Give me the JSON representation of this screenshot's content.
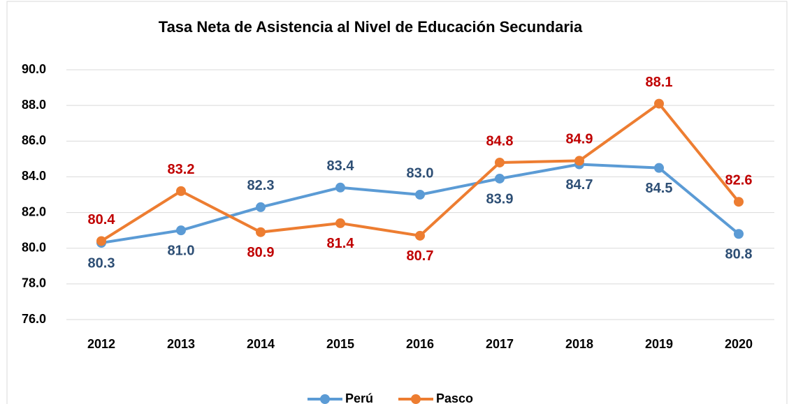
{
  "chart_data": {
    "type": "line",
    "title": "Tasa Neta de Asistencia al Nivel de Educación Secundaria",
    "categories": [
      "2012",
      "2013",
      "2014",
      "2015",
      "2016",
      "2017",
      "2018",
      "2019",
      "2020"
    ],
    "series": [
      {
        "name": "Perú",
        "color": "#5b9bd5",
        "label_color": "#2e4f75",
        "values": [
          80.3,
          81.0,
          82.3,
          83.4,
          83.0,
          83.9,
          84.7,
          84.5,
          80.8
        ],
        "value_labels": [
          "80.3",
          "81.0",
          "82.3",
          "83.4",
          "83.0",
          "83.9",
          "84.7",
          "84.5",
          "80.8"
        ]
      },
      {
        "name": "Pasco",
        "color": "#ed7d31",
        "label_color": "#c00000",
        "values": [
          80.4,
          83.2,
          80.9,
          81.4,
          80.7,
          84.8,
          84.9,
          88.1,
          82.6
        ],
        "value_labels": [
          "80.4",
          "83.2",
          "80.9",
          "81.4",
          "80.7",
          "84.8",
          "84.9",
          "88.1",
          "82.6"
        ]
      }
    ],
    "ylim": [
      76,
      90
    ],
    "yticks": [
      {
        "value": 76,
        "label": "76.0"
      },
      {
        "value": 78,
        "label": "78.0"
      },
      {
        "value": 80,
        "label": "80.0"
      },
      {
        "value": 82,
        "label": "82.0"
      },
      {
        "value": 84,
        "label": "84.0"
      },
      {
        "value": 86,
        "label": "86.0"
      },
      {
        "value": 88,
        "label": "88.0"
      },
      {
        "value": 90,
        "label": "90.0"
      }
    ],
    "grid": true,
    "legend": "bottom"
  }
}
